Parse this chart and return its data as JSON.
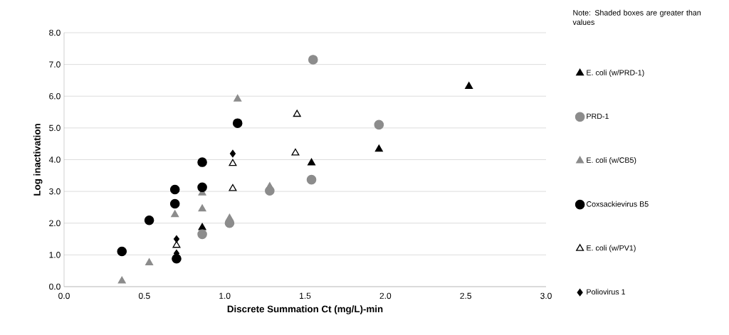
{
  "chart_data": {
    "type": "scatter",
    "xlabel": "Discrete Summation Ct (mg/L)-min",
    "ylabel": "Log inactivation",
    "annotations": [
      "Note: Shaded boxes are greater than values"
    ],
    "xlim": [
      0,
      3
    ],
    "ylim": [
      0,
      8
    ],
    "xticks": [
      {
        "value": 0,
        "label": "0.0"
      },
      {
        "value": 0.5,
        "label": "0.5"
      },
      {
        "value": 1,
        "label": "1.0"
      },
      {
        "value": 1.5,
        "label": "1.5"
      },
      {
        "value": 2,
        "label": "2.0"
      },
      {
        "value": 2.5,
        "label": "2.5"
      },
      {
        "value": 3,
        "label": "3.0"
      }
    ],
    "yticks": [
      {
        "value": 0,
        "label": "0.0"
      },
      {
        "value": 1,
        "label": "1.0"
      },
      {
        "value": 2,
        "label": "2.0"
      },
      {
        "value": 3,
        "label": "3.0"
      },
      {
        "value": 4,
        "label": "4.0"
      },
      {
        "value": 5,
        "label": "5.0"
      },
      {
        "value": 6,
        "label": "6.0"
      },
      {
        "value": 7,
        "label": "7.0"
      },
      {
        "value": 8,
        "label": "8.0"
      }
    ],
    "grid": "y",
    "legend": "right",
    "series": [
      {
        "name": "E. coli (w/PRD-1)",
        "color": "#000000",
        "marker": "triangle",
        "x": [
          0.86,
          1.54,
          1.96,
          2.52
        ],
        "values": [
          1.86,
          3.9,
          4.33,
          6.31
        ]
      },
      {
        "name": "PRD-1",
        "color": "#8c8c8c",
        "marker": "circle",
        "x": [
          0.86,
          1.03,
          1.28,
          1.54,
          1.55,
          1.96
        ],
        "values": [
          1.65,
          2.0,
          3.02,
          3.37,
          7.15,
          5.1
        ]
      },
      {
        "name": "E. coli (w/CB5)",
        "color": "#8c8c8c",
        "marker": "triangle",
        "x": [
          0.36,
          0.53,
          0.69,
          0.86,
          0.86,
          1.03,
          1.08,
          1.28
        ],
        "values": [
          0.18,
          0.75,
          2.27,
          2.45,
          2.95,
          2.15,
          5.91,
          3.15
        ]
      },
      {
        "name": "Coxsackievirus B5",
        "color": "#000000",
        "marker": "circle",
        "x": [
          0.36,
          0.53,
          0.69,
          0.69,
          0.7,
          0.86,
          0.86,
          1.08
        ],
        "values": [
          1.11,
          2.09,
          3.06,
          2.61,
          0.88,
          3.13,
          3.92,
          5.15
        ]
      },
      {
        "name": "E. coli (w/PV1)",
        "color": "#000000",
        "marker": "triangle",
        "x": [
          0.7,
          1.05,
          1.05,
          1.44,
          1.45
        ],
        "values": [
          1.3,
          3.09,
          3.88,
          4.21,
          5.43
        ]
      },
      {
        "name": "Poliovirus 1",
        "color": "#000000",
        "marker": "diamond",
        "x": [
          0.7,
          0.7,
          1.05
        ],
        "values": [
          1.5,
          1.05,
          4.19
        ]
      }
    ]
  }
}
